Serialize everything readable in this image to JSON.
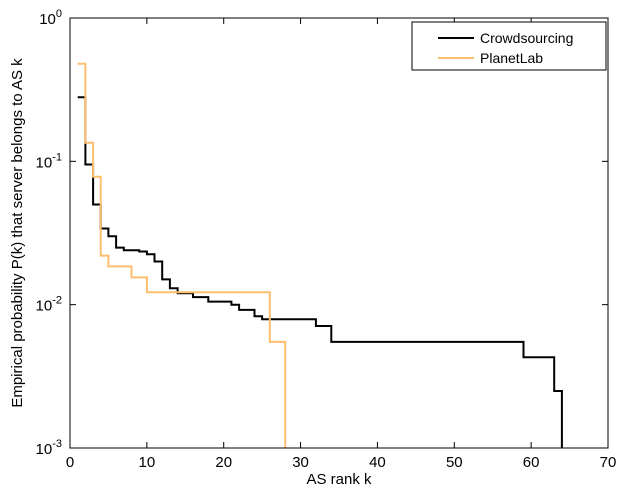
{
  "chart_data": {
    "type": "line",
    "step": true,
    "xlabel": "AS rank k",
    "ylabel": "Empirical probability P(k) that server belongs to AS k",
    "xlim": [
      0,
      70
    ],
    "ylim": [
      0.001,
      1
    ],
    "yscale": "log",
    "grid": false,
    "legend_position": "top-right",
    "x_ticks": [
      0,
      10,
      20,
      30,
      40,
      50,
      60,
      70
    ],
    "x_tick_labels": [
      "0",
      "10",
      "20",
      "30",
      "40",
      "50",
      "60",
      "70"
    ],
    "y_ticks": [
      0.001,
      0.01,
      0.1,
      1
    ],
    "y_tick_labels": [
      {
        "base": "10",
        "exp": "-3"
      },
      {
        "base": "10",
        "exp": "-2"
      },
      {
        "base": "10",
        "exp": "-1"
      },
      {
        "base": "10",
        "exp": "0"
      }
    ],
    "series": [
      {
        "name": "Crowdsourcing",
        "color": "#000000",
        "points": [
          [
            1,
            0.28
          ],
          [
            2,
            0.095
          ],
          [
            3,
            0.05
          ],
          [
            4,
            0.034
          ],
          [
            5,
            0.03
          ],
          [
            6,
            0.025
          ],
          [
            7,
            0.024
          ],
          [
            9,
            0.0235
          ],
          [
            10,
            0.0225
          ],
          [
            11,
            0.02
          ],
          [
            12,
            0.015
          ],
          [
            13,
            0.013
          ],
          [
            14,
            0.012
          ],
          [
            16,
            0.0113
          ],
          [
            18,
            0.0105
          ],
          [
            21,
            0.01
          ],
          [
            22,
            0.0092
          ],
          [
            24,
            0.0083
          ],
          [
            25,
            0.0079
          ],
          [
            31,
            0.0079
          ],
          [
            32,
            0.0071
          ],
          [
            34,
            0.0055
          ],
          [
            58,
            0.0055
          ],
          [
            59,
            0.0043
          ],
          [
            62,
            0.0043
          ],
          [
            63,
            0.0025
          ],
          [
            64,
            0.0025
          ],
          [
            64,
            0.001
          ]
        ]
      },
      {
        "name": "PlanetLab",
        "color": "#FDBF6F",
        "points": [
          [
            1,
            0.48
          ],
          [
            2,
            0.135
          ],
          [
            3,
            0.078
          ],
          [
            4,
            0.022
          ],
          [
            5,
            0.0185
          ],
          [
            8,
            0.0185
          ],
          [
            8,
            0.0155
          ],
          [
            10,
            0.0155
          ],
          [
            10,
            0.0122
          ],
          [
            25,
            0.0122
          ],
          [
            26,
            0.0055
          ],
          [
            27,
            0.0055
          ],
          [
            28,
            0.0055
          ],
          [
            28,
            0.001
          ]
        ]
      }
    ]
  }
}
